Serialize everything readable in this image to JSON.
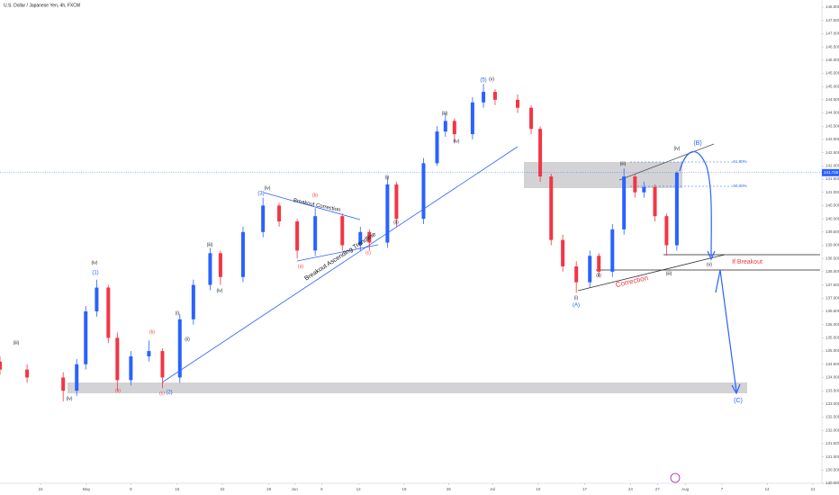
{
  "chart_data": {
    "type": "candlestick",
    "title": "U.S. Dollar / Japanese Yen, 4h, FXCM",
    "up_color": "#2962ff",
    "down_color": "#f23645",
    "x": [
      -6.3,
      -2.1,
      3.5,
      5.6,
      7.0,
      8.7,
      10.5,
      11.9,
      14.0,
      16.8,
      18.9,
      21.6,
      23.7,
      26.3,
      27.9,
      31.4,
      34.5,
      37.0,
      39.8,
      42.6,
      46.8,
      49.6,
      51.0,
      53.8,
      55.2,
      59.4,
      61.5,
      62.8,
      64.2,
      67.0,
      68.7,
      70.5,
      74.0,
      76.1,
      77.5,
      79.2,
      81.0,
      83.1,
      85.2,
      86.6,
      88.7,
      90.5,
      92.2,
      93.6,
      95.3,
      97.1,
      98.7
    ],
    "open": [
      134.6,
      134.3,
      134.0,
      133.5,
      134.5,
      136.5,
      137.4,
      135.5,
      133.9,
      134.8,
      135.0,
      134.0,
      136.2,
      137.5,
      138.7,
      137.8,
      139.5,
      140.5,
      139.9,
      138.8,
      140.1,
      139.0,
      139.5,
      139.1,
      141.3,
      140.0,
      142.1,
      143.3,
      143.7,
      143.2,
      144.4,
      144.8,
      144.5,
      144.2,
      143.4,
      141.6,
      139.2,
      138.2,
      137.6,
      138.6,
      138.0,
      139.6,
      141.6,
      141.0,
      141.2,
      140.1,
      139.0
    ],
    "high": [
      134.8,
      134.5,
      134.2,
      134.7,
      136.7,
      137.7,
      137.5,
      135.7,
      135.0,
      135.4,
      135.1,
      136.4,
      137.7,
      138.9,
      138.8,
      139.7,
      140.8,
      140.6,
      140.0,
      140.4,
      140.2,
      139.7,
      139.6,
      141.6,
      141.4,
      142.3,
      143.5,
      144.0,
      143.8,
      144.6,
      145.1,
      144.9,
      144.7,
      144.3,
      143.5,
      141.7,
      139.4,
      138.4,
      138.8,
      138.7,
      139.8,
      141.9,
      141.7,
      141.4,
      141.3,
      140.2,
      141.8
    ],
    "low": [
      134.1,
      133.8,
      133.1,
      133.3,
      134.3,
      136.3,
      135.3,
      133.5,
      133.7,
      134.6,
      133.6,
      133.8,
      136.0,
      137.3,
      137.5,
      137.6,
      139.3,
      139.7,
      138.5,
      138.6,
      138.8,
      138.8,
      138.8,
      138.9,
      139.7,
      139.8,
      142.0,
      143.1,
      142.9,
      143.0,
      144.2,
      144.3,
      144.0,
      143.2,
      141.4,
      139.0,
      138.0,
      137.2,
      137.4,
      137.8,
      137.8,
      139.4,
      140.8,
      140.8,
      139.9,
      138.6,
      138.8
    ],
    "close": [
      134.3,
      134.0,
      133.5,
      134.5,
      136.5,
      137.4,
      135.5,
      133.9,
      134.8,
      135.0,
      134.0,
      136.2,
      137.5,
      138.7,
      137.8,
      139.5,
      140.5,
      139.9,
      138.8,
      140.1,
      139.0,
      139.5,
      139.1,
      141.3,
      140.0,
      142.1,
      143.3,
      143.7,
      143.2,
      144.4,
      144.8,
      144.5,
      144.2,
      143.4,
      141.6,
      139.2,
      138.2,
      137.6,
      138.6,
      138.0,
      139.6,
      141.6,
      141.0,
      141.2,
      140.1,
      139.0,
      141.745
    ],
    "last_price": 141.745,
    "xlim": [
      -6.3,
      121.2
    ],
    "xticks": [
      {
        "value": 0,
        "label": "24"
      },
      {
        "value": 7.1,
        "label": "May"
      },
      {
        "value": 14,
        "label": "8"
      },
      {
        "value": 21.2,
        "label": "15"
      },
      {
        "value": 28.2,
        "label": "22"
      },
      {
        "value": 35.4,
        "label": "29"
      },
      {
        "value": 39.4,
        "label": "Jun"
      },
      {
        "value": 43.6,
        "label": "5"
      },
      {
        "value": 49.3,
        "label": "12"
      },
      {
        "value": 56.4,
        "label": "19"
      },
      {
        "value": 63.3,
        "label": "26"
      },
      {
        "value": 70.1,
        "label": "Jul"
      },
      {
        "value": 77.2,
        "label": "10"
      },
      {
        "value": 84.4,
        "label": "17"
      },
      {
        "value": 91.5,
        "label": "24"
      },
      {
        "value": 95.7,
        "label": "27"
      },
      {
        "value": 100,
        "label": "Aug"
      },
      {
        "value": 105.7,
        "label": "7"
      },
      {
        "value": 112.7,
        "label": "14"
      },
      {
        "value": 119.8,
        "label": "21"
      }
    ],
    "ylim": [
      130.0,
      148.0
    ],
    "yticks": [
      {
        "value": 130,
        "label": "130.000"
      },
      {
        "value": 130.5,
        "label": "130.500"
      },
      {
        "value": 131,
        "label": "131.000"
      },
      {
        "value": 131.5,
        "label": "131.500"
      },
      {
        "value": 132,
        "label": "132.000"
      },
      {
        "value": 132.5,
        "label": "132.500"
      },
      {
        "value": 133,
        "label": "133.000"
      },
      {
        "value": 133.5,
        "label": "133.500"
      },
      {
        "value": 134,
        "label": "134.000"
      },
      {
        "value": 134.5,
        "label": "134.500"
      },
      {
        "value": 135,
        "label": "135.000"
      },
      {
        "value": 135.5,
        "label": "135.500"
      },
      {
        "value": 136,
        "label": "136.000"
      },
      {
        "value": 136.5,
        "label": "136.500"
      },
      {
        "value": 137,
        "label": "137.000"
      },
      {
        "value": 137.5,
        "label": "137.500"
      },
      {
        "value": 138,
        "label": "138.000"
      },
      {
        "value": 138.5,
        "label": "138.500"
      },
      {
        "value": 139,
        "label": "139.000"
      },
      {
        "value": 139.5,
        "label": "139.500"
      },
      {
        "value": 140,
        "label": "140.000"
      },
      {
        "value": 140.5,
        "label": "140.500"
      },
      {
        "value": 141,
        "label": "141.000"
      },
      {
        "value": 141.5,
        "label": "141.500"
      },
      {
        "value": 142,
        "label": "142.000"
      },
      {
        "value": 142.5,
        "label": "142.500"
      },
      {
        "value": 143,
        "label": "143.000"
      },
      {
        "value": 143.5,
        "label": "143.500"
      },
      {
        "value": 144,
        "label": "144.000"
      },
      {
        "value": 144.5,
        "label": "144.500"
      },
      {
        "value": 145,
        "label": "145.000"
      },
      {
        "value": 145.5,
        "label": "145.500"
      },
      {
        "value": 146,
        "label": "146.000"
      },
      {
        "value": 146.5,
        "label": "146.500"
      },
      {
        "value": 147,
        "label": "147.000"
      },
      {
        "value": 147.5,
        "label": "147.500"
      },
      {
        "value": 148,
        "label": "148.000"
      }
    ],
    "annotations": [
      "(iii)",
      "(iv)",
      "(1)",
      "(iv)",
      "(a)",
      "(b)",
      "(c)",
      "(2)",
      "(i)",
      "(ii)",
      "(iii)",
      "(iv)",
      "(3)",
      "(iv)",
      "Breakout Correction",
      "(a)",
      "(b)",
      "(c)",
      "Breakout Ascending Trendline",
      "(i)",
      "(ii)",
      "(iii)",
      "(iv)",
      "(5)",
      "(v)",
      "(i)",
      "(A)",
      "(ii)",
      "(iii)",
      "(iv)",
      "(B)",
      "61.80%",
      "50.00%",
      "Correction",
      "If Breakout",
      "(v)",
      "(iii)",
      "(C)"
    ]
  }
}
